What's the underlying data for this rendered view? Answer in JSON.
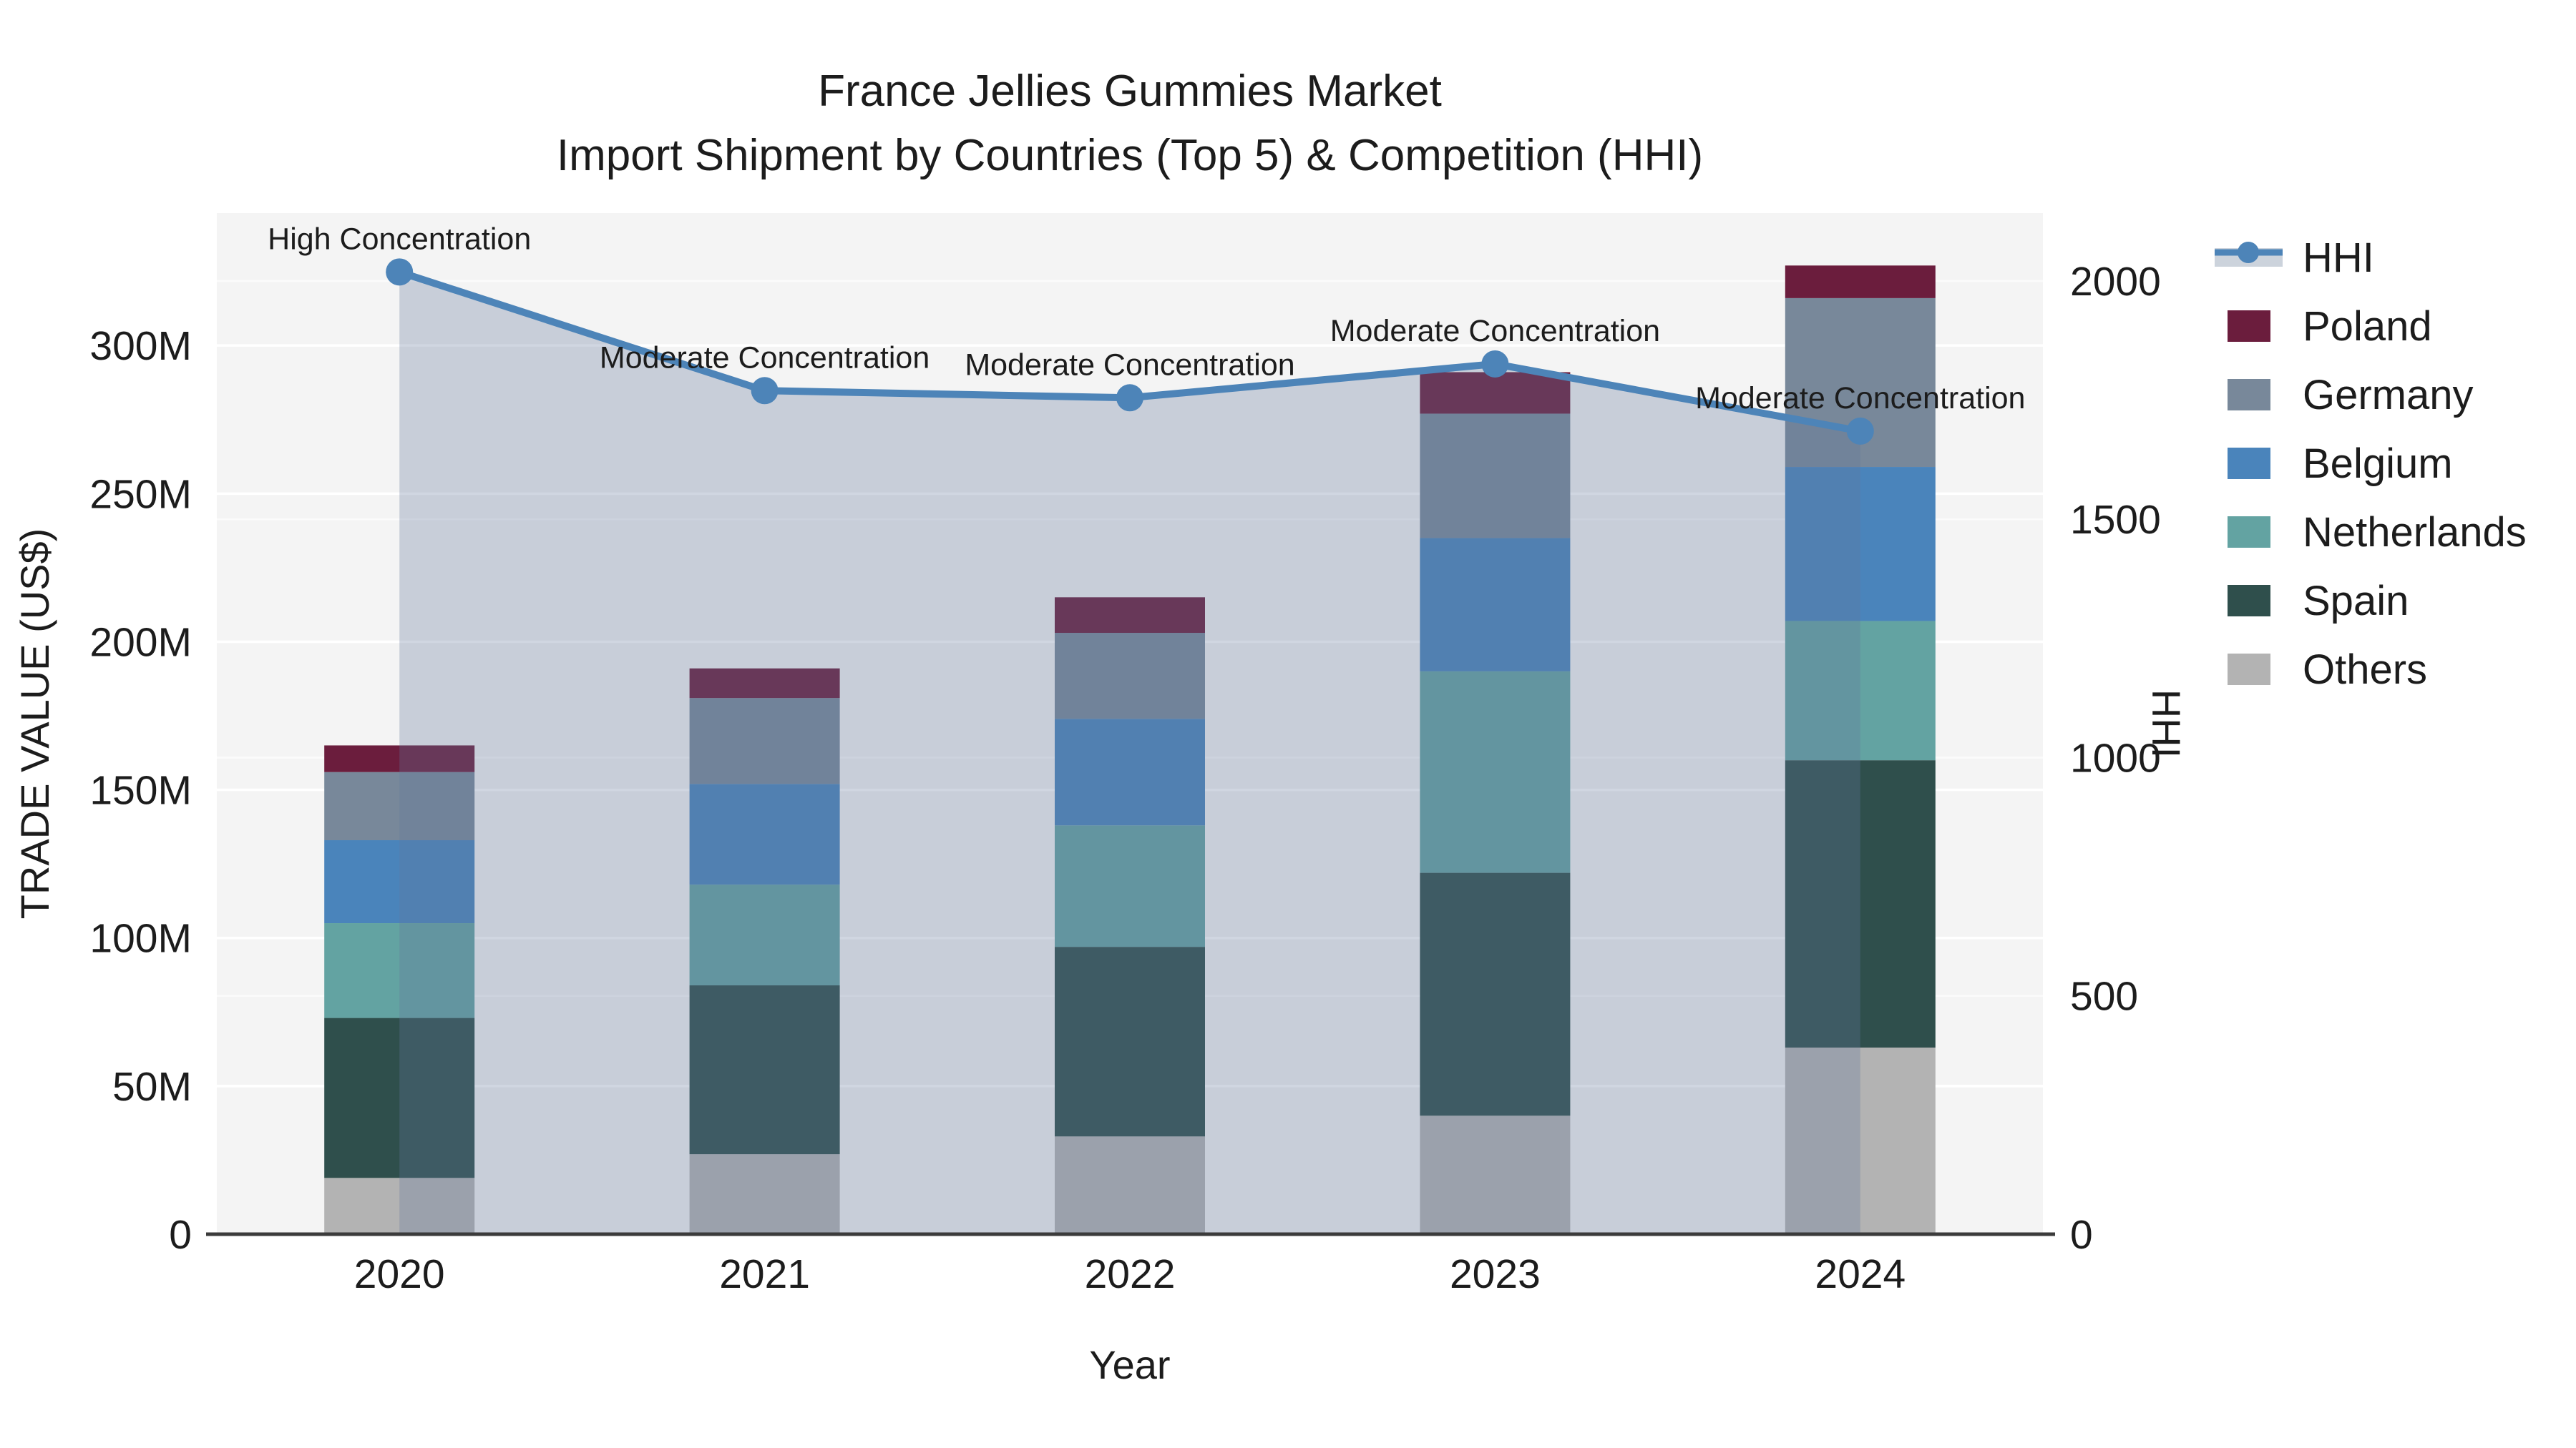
{
  "title": {
    "line1": "France Jellies Gummies Market",
    "line2": "Import Shipment by Countries (Top 5) & Competition (HHI)"
  },
  "chart_data": {
    "type": "stacked_bar_with_line",
    "categories": [
      "2020",
      "2021",
      "2022",
      "2023",
      "2024"
    ],
    "value_unit": "M US$",
    "series": [
      {
        "name": "Others",
        "color": "#b3b3b3",
        "values": [
          19,
          27,
          33,
          40,
          63
        ]
      },
      {
        "name": "Spain",
        "color": "#2f4f4c",
        "values": [
          54,
          57,
          64,
          82,
          97
        ]
      },
      {
        "name": "Netherlands",
        "color": "#63a3a2",
        "values": [
          32,
          34,
          41,
          68,
          47
        ]
      },
      {
        "name": "Belgium",
        "color": "#4a84bb",
        "values": [
          28,
          34,
          36,
          45,
          52
        ]
      },
      {
        "name": "Germany",
        "color": "#78889a",
        "values": [
          23,
          29,
          29,
          42,
          57
        ]
      },
      {
        "name": "Poland",
        "color": "#6b1d3d",
        "values": [
          9,
          10,
          12,
          14,
          11
        ]
      }
    ],
    "bar_totals": [
      165,
      191,
      215,
      291,
      327
    ],
    "line": {
      "name": "HHI",
      "color": "#4d84b8",
      "area_fill": "rgba(100,120,155,0.30)",
      "legend_band_color": "#ccd3dc",
      "values": [
        2019,
        1770,
        1755,
        1826,
        1685
      ]
    },
    "annotations": [
      {
        "x": "2020",
        "label": "High Concentration"
      },
      {
        "x": "2021",
        "label": "Moderate Concentration"
      },
      {
        "x": "2022",
        "label": "Moderate Concentration"
      },
      {
        "x": "2023",
        "label": "Moderate Concentration"
      },
      {
        "x": "2024",
        "label": "Moderate Concentration"
      }
    ],
    "xlabel": "Year",
    "ylabel": "TRADE VALUE (US$)",
    "y2label": "HHI",
    "ylim": [
      0,
      344.7
    ],
    "y2lim": [
      0,
      2142.5
    ],
    "ytick_values": [
      0,
      50,
      100,
      150,
      200,
      250,
      300
    ],
    "ytick_labels": [
      "0",
      "50M",
      "100M",
      "150M",
      "200M",
      "250M",
      "300M"
    ],
    "y2tick_values": [
      0,
      500,
      1000,
      1500,
      2000
    ],
    "y2tick_labels": [
      "0",
      "500",
      "1000",
      "1500",
      "2000"
    ],
    "legend_order": [
      "HHI",
      "Poland",
      "Germany",
      "Belgium",
      "Netherlands",
      "Spain",
      "Others"
    ],
    "grid": true,
    "plot_bg": "#f4f4f4",
    "axis_line_color": "#3b3b3b"
  }
}
